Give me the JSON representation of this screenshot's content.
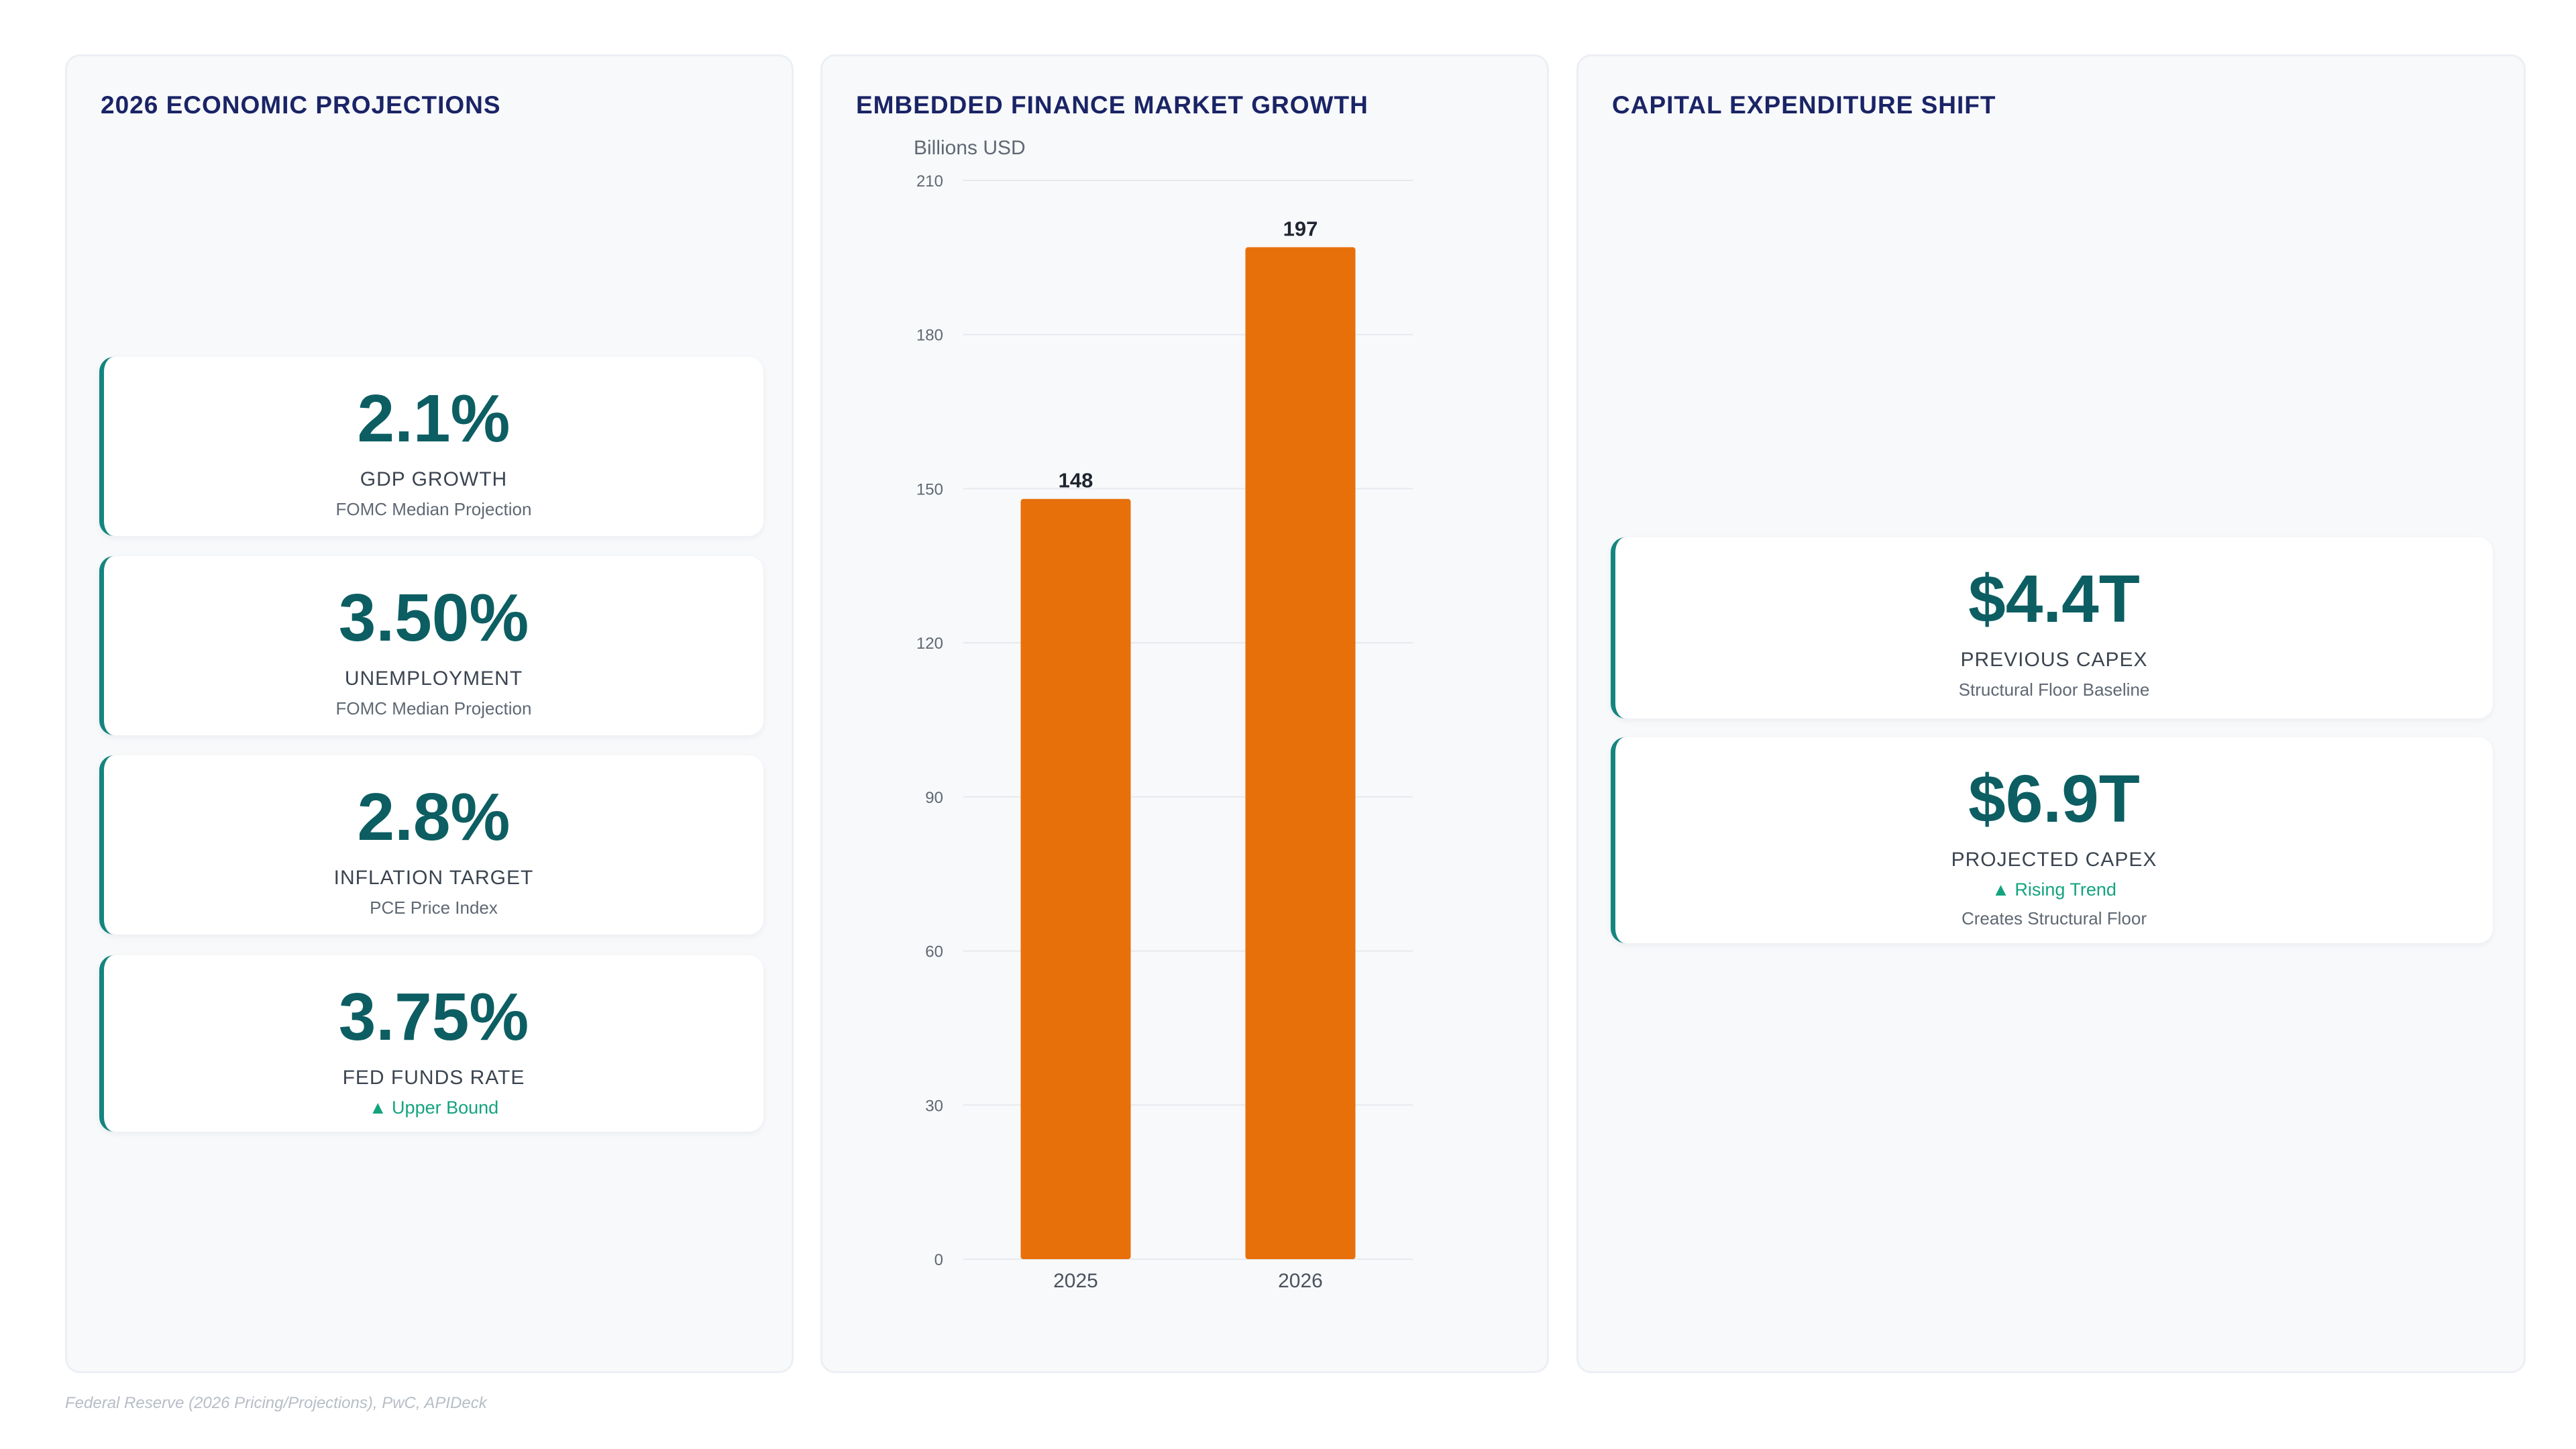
{
  "panels": {
    "projections": {
      "title": "2026 ECONOMIC PROJECTIONS",
      "cards": [
        {
          "value": "2.1%",
          "label": "GDP GROWTH",
          "sub": "FOMC Median Projection"
        },
        {
          "value": "3.50%",
          "label": "UNEMPLOYMENT",
          "sub": "FOMC Median Projection"
        },
        {
          "value": "2.8%",
          "label": "INFLATION TARGET",
          "sub": "PCE Price Index"
        },
        {
          "value": "3.75%",
          "label": "FED FUNDS RATE",
          "note": "▲ Upper Bound"
        }
      ]
    },
    "market": {
      "title": "EMBEDDED FINANCE MARKET GROWTH"
    },
    "capex": {
      "title": "CAPITAL EXPENDITURE SHIFT",
      "cards": [
        {
          "value": "$4.4T",
          "label": "PREVIOUS CAPEX",
          "sub": "Structural Floor Baseline"
        },
        {
          "value": "$6.9T",
          "label": "PROJECTED CAPEX",
          "note": "▲ Rising Trend",
          "sub": "Creates Structural Floor"
        }
      ]
    }
  },
  "chart_data": {
    "type": "bar",
    "title": "EMBEDDED FINANCE MARKET GROWTH",
    "ylabel": "Billions USD",
    "xlabel": "",
    "categories": [
      "2025",
      "2026"
    ],
    "values": [
      148,
      197
    ],
    "data_labels": [
      "148",
      "197"
    ],
    "ylim": [
      0,
      210
    ],
    "yticks": [
      0,
      30,
      60,
      90,
      120,
      150,
      180,
      210
    ],
    "grid": true,
    "bar_color": "#e8700a"
  },
  "source": "Federal Reserve (2026 Pricing/Projections), PwC, APIDeck"
}
